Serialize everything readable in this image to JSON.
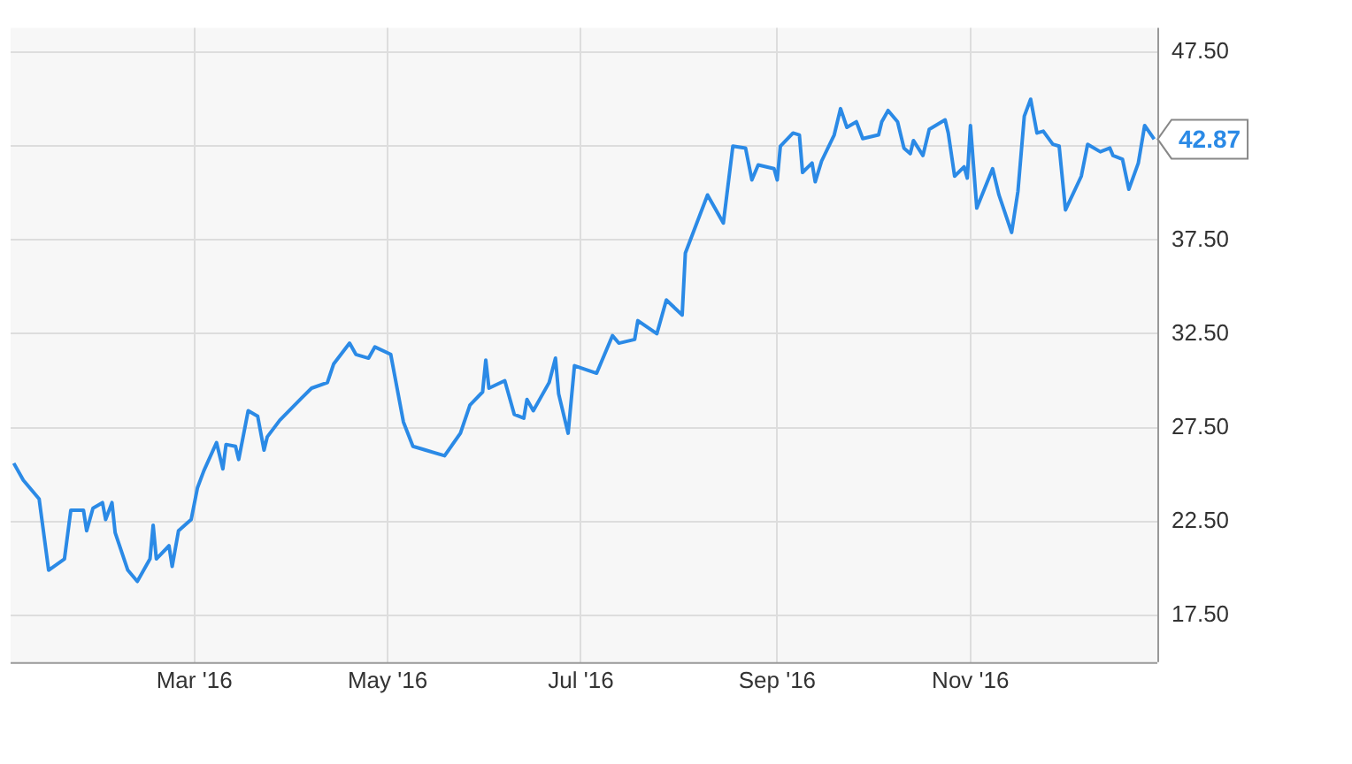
{
  "chart_data": {
    "type": "line",
    "x": [
      "2016-01-04",
      "2016-01-07",
      "2016-01-12",
      "2016-01-15",
      "2016-01-20",
      "2016-01-22",
      "2016-01-26",
      "2016-01-27",
      "2016-01-29",
      "2016-02-01",
      "2016-02-02",
      "2016-02-04",
      "2016-02-05",
      "2016-02-09",
      "2016-02-12",
      "2016-02-16",
      "2016-02-17",
      "2016-02-18",
      "2016-02-22",
      "2016-02-23",
      "2016-02-25",
      "2016-02-29",
      "2016-03-02",
      "2016-03-04",
      "2016-03-08",
      "2016-03-10",
      "2016-03-11",
      "2016-03-14",
      "2016-03-15",
      "2016-03-18",
      "2016-03-21",
      "2016-03-23",
      "2016-03-24",
      "2016-03-28",
      "2016-04-04",
      "2016-04-07",
      "2016-04-12",
      "2016-04-14",
      "2016-04-19",
      "2016-04-21",
      "2016-04-25",
      "2016-04-27",
      "2016-05-02",
      "2016-05-06",
      "2016-05-09",
      "2016-05-13",
      "2016-05-19",
      "2016-05-24",
      "2016-05-27",
      "2016-05-31",
      "2016-06-01",
      "2016-06-02",
      "2016-06-07",
      "2016-06-10",
      "2016-06-13",
      "2016-06-14",
      "2016-06-16",
      "2016-06-21",
      "2016-06-23",
      "2016-06-24",
      "2016-06-27",
      "2016-06-29",
      "2016-07-06",
      "2016-07-11",
      "2016-07-13",
      "2016-07-18",
      "2016-07-19",
      "2016-07-25",
      "2016-07-28",
      "2016-08-02",
      "2016-08-03",
      "2016-08-10",
      "2016-08-15",
      "2016-08-18",
      "2016-08-22",
      "2016-08-24",
      "2016-08-26",
      "2016-08-31",
      "2016-09-01",
      "2016-09-02",
      "2016-09-06",
      "2016-09-08",
      "2016-09-09",
      "2016-09-12",
      "2016-09-13",
      "2016-09-15",
      "2016-09-19",
      "2016-09-21",
      "2016-09-23",
      "2016-09-26",
      "2016-09-28",
      "2016-10-03",
      "2016-10-04",
      "2016-10-06",
      "2016-10-09",
      "2016-10-11",
      "2016-10-13",
      "2016-10-14",
      "2016-10-17",
      "2016-10-19",
      "2016-10-24",
      "2016-10-25",
      "2016-10-27",
      "2016-10-30",
      "2016-10-31",
      "2016-11-01",
      "2016-11-03",
      "2016-11-08",
      "2016-11-10",
      "2016-11-14",
      "2016-11-16",
      "2016-11-18",
      "2016-11-20",
      "2016-11-22",
      "2016-11-24",
      "2016-11-27",
      "2016-11-29",
      "2016-12-01",
      "2016-12-06",
      "2016-12-08",
      "2016-12-12",
      "2016-12-15",
      "2016-12-16",
      "2016-12-19",
      "2016-12-21",
      "2016-12-24",
      "2016-12-26",
      "2016-12-29"
    ],
    "series": [
      {
        "color": "#2b8ae6",
        "values": [
          25.6,
          24.7,
          23.7,
          19.9,
          20.5,
          23.1,
          23.1,
          22.0,
          23.2,
          23.5,
          22.6,
          23.5,
          21.9,
          19.9,
          19.3,
          20.5,
          22.3,
          20.5,
          21.2,
          20.1,
          22.0,
          22.6,
          24.3,
          25.2,
          26.7,
          25.3,
          26.6,
          26.5,
          25.8,
          28.4,
          28.1,
          26.3,
          27.0,
          27.9,
          29.1,
          29.6,
          29.9,
          30.9,
          32.0,
          31.4,
          31.2,
          31.8,
          31.4,
          27.8,
          26.5,
          26.3,
          26.0,
          27.2,
          28.7,
          29.4,
          31.1,
          29.6,
          30.0,
          28.2,
          28.0,
          29.0,
          28.4,
          29.9,
          31.2,
          29.3,
          27.2,
          30.8,
          30.4,
          32.4,
          32.0,
          32.2,
          33.2,
          32.5,
          34.3,
          33.5,
          36.8,
          39.9,
          38.4,
          42.5,
          42.4,
          40.7,
          41.5,
          41.3,
          40.7,
          42.5,
          43.2,
          43.1,
          41.1,
          41.6,
          40.6,
          41.7,
          43.1,
          44.5,
          43.5,
          43.8,
          42.9,
          43.1,
          43.8,
          44.4,
          43.8,
          42.4,
          42.1,
          42.8,
          42.0,
          43.4,
          43.9,
          43.2,
          40.9,
          41.4,
          40.8,
          43.6,
          39.2,
          41.3,
          39.9,
          37.9,
          40.1,
          44.1,
          45.0,
          43.2,
          43.3,
          42.6,
          42.5,
          39.1,
          40.9,
          42.6,
          42.2,
          42.4,
          42.0,
          41.8,
          40.2,
          41.6,
          43.6,
          42.87
        ]
      }
    ],
    "xlim": [
      "2016-01-03",
      "2016-12-30"
    ],
    "xticks": [
      {
        "value": "2016-03-01",
        "label": "Mar '16"
      },
      {
        "value": "2016-05-01",
        "label": "May '16"
      },
      {
        "value": "2016-07-01",
        "label": "Jul '16"
      },
      {
        "value": "2016-09-01",
        "label": "Sep '16"
      },
      {
        "value": "2016-11-01",
        "label": "Nov '16"
      }
    ],
    "ylim": [
      15,
      48.8
    ],
    "yticks": [
      {
        "value": 17.5,
        "label": "17.50"
      },
      {
        "value": 22.5,
        "label": "22.50"
      },
      {
        "value": 27.5,
        "label": "27.50"
      },
      {
        "value": 32.5,
        "label": "32.50"
      },
      {
        "value": 37.5,
        "label": "37.50"
      },
      {
        "value": 42.5,
        "label": null
      },
      {
        "value": 47.5,
        "label": "47.50"
      }
    ],
    "grid": true,
    "legend": false,
    "marker": "none",
    "line_style": "solid",
    "annotations": [
      {
        "text": "42.87",
        "x": "2016-12-29",
        "y": 42.87
      }
    ]
  }
}
